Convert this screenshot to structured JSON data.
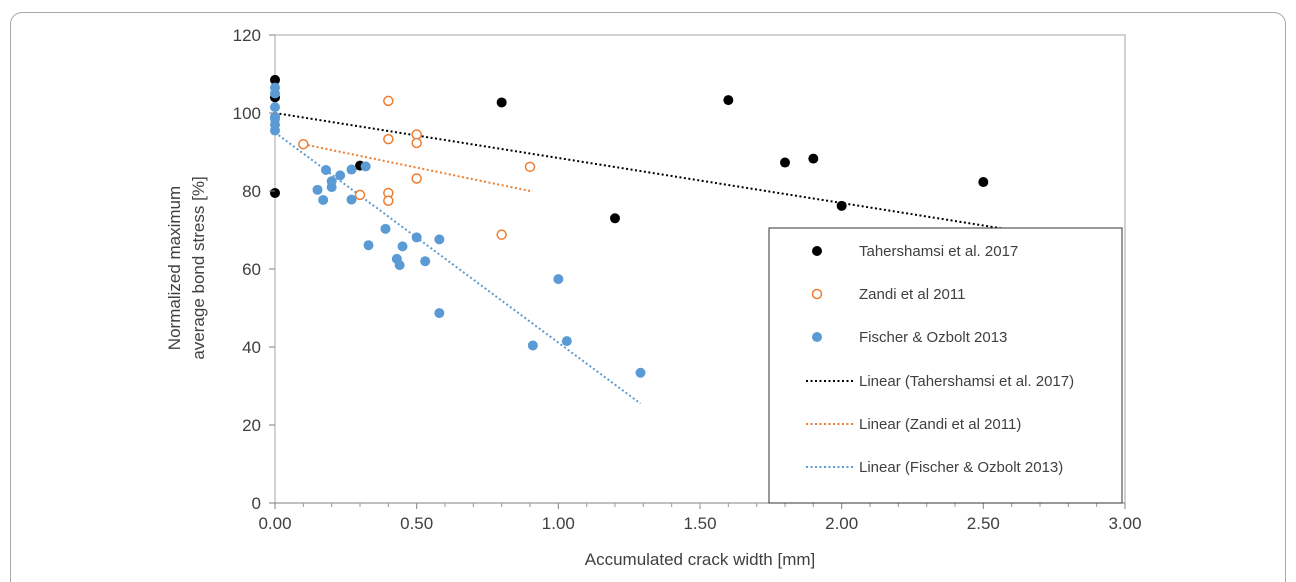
{
  "chart_data": {
    "type": "scatter",
    "title": "",
    "xlabel": "Accumulated crack width [mm]",
    "ylabel_lines": [
      "Normalized maximum",
      "average bond stress [%]"
    ],
    "xlim": [
      0,
      3
    ],
    "ylim": [
      0,
      120
    ],
    "x_ticks": [
      0,
      0.5,
      1,
      1.5,
      2,
      2.5,
      3
    ],
    "x_tick_labels": [
      "0.00",
      "0.50",
      "1.00",
      "1.50",
      "2.00",
      "2.50",
      "3.00"
    ],
    "y_ticks": [
      0,
      20,
      40,
      60,
      80,
      100,
      120
    ],
    "y_tick_labels": [
      "0",
      "20",
      "40",
      "60",
      "80",
      "100",
      "120"
    ],
    "grid": false,
    "legend_position": "right",
    "series": [
      {
        "name": "Tahershamsi et al. 2017",
        "marker": "filled-circle",
        "color": "#000000",
        "points": [
          [
            0,
            108.5
          ],
          [
            0,
            104
          ],
          [
            0,
            79.5
          ],
          [
            0.3,
            86.5
          ],
          [
            0.8,
            102.7
          ],
          [
            1.2,
            73
          ],
          [
            1.6,
            103.3
          ],
          [
            1.8,
            87.3
          ],
          [
            1.9,
            88.3
          ],
          [
            2.0,
            76.2
          ],
          [
            2.5,
            82.3
          ]
        ]
      },
      {
        "name": "Zandi et al 2011",
        "marker": "open-circle",
        "color": "#ED7D31",
        "points": [
          [
            0.1,
            92
          ],
          [
            0.3,
            79
          ],
          [
            0.4,
            103.1
          ],
          [
            0.4,
            93.3
          ],
          [
            0.4,
            79.5
          ],
          [
            0.4,
            77.5
          ],
          [
            0.5,
            94.5
          ],
          [
            0.5,
            92.3
          ],
          [
            0.5,
            83.2
          ],
          [
            0.8,
            68.8
          ],
          [
            0.9,
            86.2
          ]
        ]
      },
      {
        "name": "Fischer & Ozbolt 2013",
        "marker": "filled-circle",
        "color": "#5B9BD5",
        "points": [
          [
            0,
            106.5
          ],
          [
            0,
            105
          ],
          [
            0,
            101.5
          ],
          [
            0,
            99
          ],
          [
            0,
            98.5
          ],
          [
            0,
            97
          ],
          [
            0,
            95.5
          ],
          [
            0.15,
            80.3
          ],
          [
            0.17,
            77.7
          ],
          [
            0.18,
            85.4
          ],
          [
            0.2,
            82.5
          ],
          [
            0.2,
            81
          ],
          [
            0.23,
            84
          ],
          [
            0.27,
            85.5
          ],
          [
            0.27,
            77.8
          ],
          [
            0.32,
            86.3
          ],
          [
            0.33,
            66.1
          ],
          [
            0.39,
            70.3
          ],
          [
            0.43,
            62.6
          ],
          [
            0.44,
            61
          ],
          [
            0.45,
            65.8
          ],
          [
            0.5,
            68.1
          ],
          [
            0.53,
            62
          ],
          [
            0.58,
            67.6
          ],
          [
            0.58,
            48.7
          ],
          [
            0.91,
            40.4
          ],
          [
            1.0,
            57.4
          ],
          [
            1.03,
            41.5
          ],
          [
            1.29,
            33.4
          ]
        ]
      }
    ],
    "trendlines": [
      {
        "name": "Linear (Tahershamsi et al. 2017)",
        "color": "#000000",
        "x": [
          0,
          2.6
        ],
        "y": [
          100,
          70
        ]
      },
      {
        "name": "Linear (Zandi et al 2011)",
        "color": "#ED7D31",
        "x": [
          0.1,
          0.9
        ],
        "y": [
          92,
          80
        ]
      },
      {
        "name": "Linear (Fischer & Ozbolt 2013)",
        "color": "#5B9BD5",
        "x": [
          0,
          1.29
        ],
        "y": [
          95,
          25.5
        ]
      }
    ]
  }
}
